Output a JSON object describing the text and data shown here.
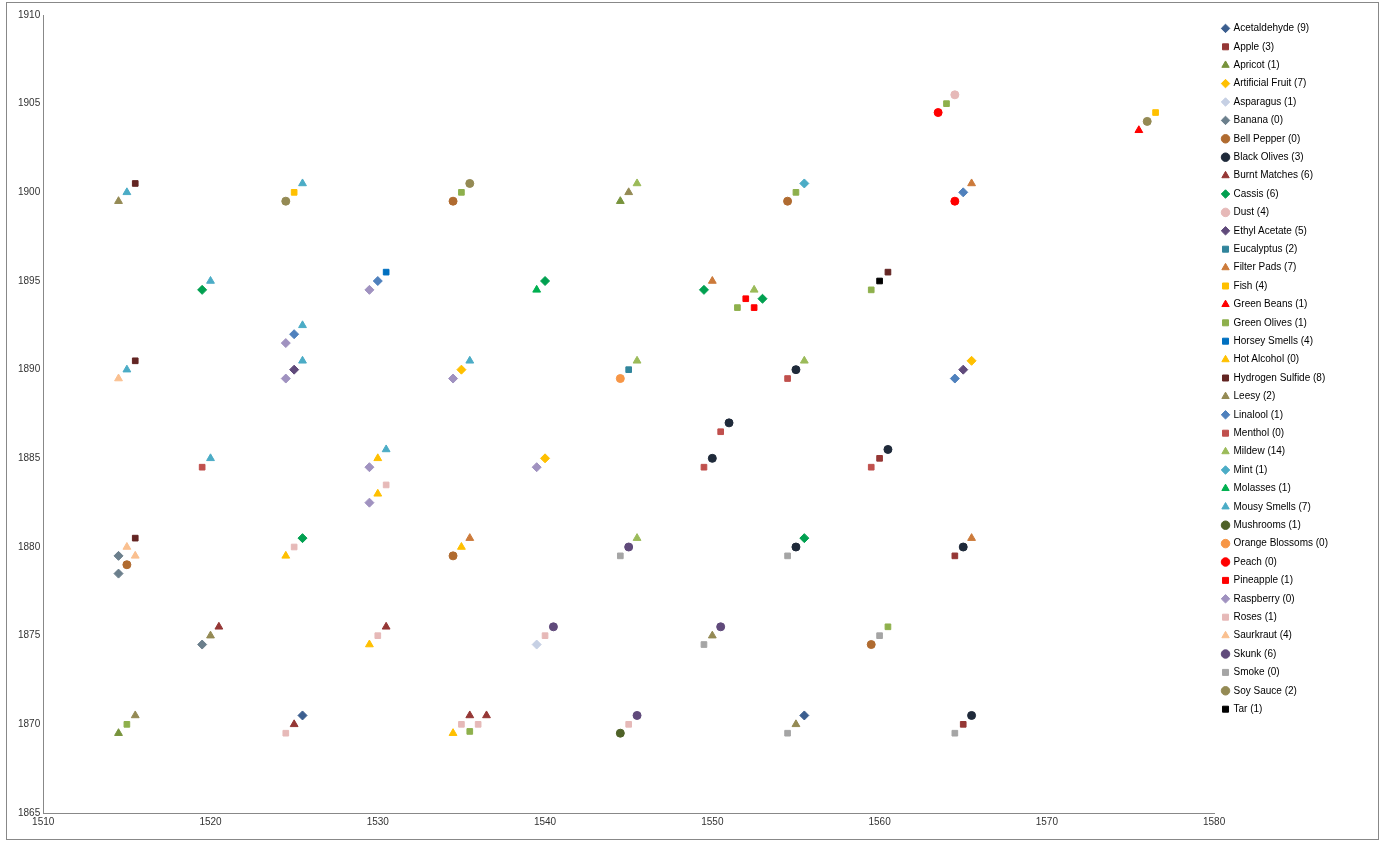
{
  "chart_data": {
    "type": "scatter",
    "xlim": [
      1510,
      1580
    ],
    "xticks": [
      1510,
      1520,
      1530,
      1540,
      1550,
      1560,
      1570,
      1580
    ],
    "ylim": [
      1865,
      1910
    ],
    "yticks": [
      1865,
      1870,
      1875,
      1880,
      1885,
      1890,
      1895,
      1900,
      1905,
      1910
    ],
    "grid": false,
    "legend": "right",
    "series": [
      {
        "name": "Acetaldehyde (9)",
        "color": "#3b5e8f",
        "marker": "diamond",
        "x": [
          1525.5,
          1555.5
        ],
        "values": [
          1870.5,
          1870.5
        ]
      },
      {
        "name": "Apple (3)",
        "color": "#953735",
        "marker": "square",
        "x": [
          1560,
          1564.5,
          1565
        ],
        "values": [
          1885,
          1879.5,
          1870
        ]
      },
      {
        "name": "Apricot (1)",
        "color": "#77933c",
        "marker": "triangle",
        "x": [
          1514.5,
          1544.5
        ],
        "values": [
          1869.5,
          1899.5
        ]
      },
      {
        "name": "Artificial Fruit (7)",
        "color": "#ffc000",
        "marker": "diamond",
        "x": [
          1535,
          1540,
          1565.5
        ],
        "values": [
          1890,
          1885,
          1890.5
        ]
      },
      {
        "name": "Asparagus (1)",
        "color": "#c6d0e4",
        "marker": "diamond",
        "x": [
          1539.5
        ],
        "values": [
          1874.5
        ]
      },
      {
        "name": "Banana (0)",
        "color": "#6b7f8c",
        "marker": "diamond",
        "x": [
          1514.5,
          1514.5,
          1519.5
        ],
        "values": [
          1879.5,
          1878.5,
          1874.5
        ]
      },
      {
        "name": "Bell Pepper (0)",
        "color": "#b06b30",
        "marker": "circle",
        "x": [
          1515,
          1534.5,
          1554.5,
          1534.5,
          1559.5
        ],
        "values": [
          1879,
          1899.5,
          1899.5,
          1879.5,
          1874.5
        ]
      },
      {
        "name": "Black Olives (3)",
        "color": "#1f2a3a",
        "marker": "circle",
        "x": [
          1555,
          1551,
          1550,
          1555,
          1560.5,
          1565,
          1565.5
        ],
        "values": [
          1890,
          1887,
          1885,
          1880,
          1885.5,
          1880,
          1870.5
        ]
      },
      {
        "name": "Burnt Matches (6)",
        "color": "#953735",
        "marker": "triangle",
        "x": [
          1520.5,
          1530.5,
          1525,
          1535.5,
          1536.5
        ],
        "values": [
          1875.5,
          1875.5,
          1870,
          1870.5,
          1870.5
        ]
      },
      {
        "name": "Cassis (6)",
        "color": "#00a050",
        "marker": "diamond",
        "x": [
          1519.5,
          1525.5,
          1540,
          1549.5,
          1553,
          1555.5
        ],
        "values": [
          1894.5,
          1880.5,
          1895,
          1894.5,
          1894,
          1880.5
        ]
      },
      {
        "name": "Dust (4)",
        "color": "#e6b9b8",
        "marker": "circle",
        "x": [
          1564.5
        ],
        "values": [
          1905.5
        ]
      },
      {
        "name": "Ethyl Acetate (5)",
        "color": "#604a7b",
        "marker": "diamond",
        "x": [
          1525,
          1565
        ],
        "values": [
          1890,
          1890
        ]
      },
      {
        "name": "Eucalyptus (2)",
        "color": "#31859c",
        "marker": "square",
        "x": [
          1545
        ],
        "values": [
          1890
        ]
      },
      {
        "name": "Filter Pads (7)",
        "color": "#cc7a3a",
        "marker": "triangle",
        "x": [
          1550,
          1535.5,
          1565.5,
          1565.5
        ],
        "values": [
          1895,
          1880.5,
          1900.5,
          1880.5
        ]
      },
      {
        "name": "Fish (4)",
        "color": "#ffc000",
        "marker": "square",
        "x": [
          1525,
          1576.5
        ],
        "values": [
          1900,
          1904.5
        ]
      },
      {
        "name": "Green Beans (1)",
        "color": "#ff0000",
        "marker": "triangle",
        "x": [
          1575.5
        ],
        "values": [
          1903.5
        ]
      },
      {
        "name": "Green Olives (1)",
        "color": "#8eb04c",
        "marker": "square",
        "x": [
          1515,
          1535,
          1555,
          1551.5,
          1535.5,
          1564,
          1559.5,
          1560.5
        ],
        "values": [
          1870,
          1900,
          1900,
          1893.5,
          1869.6,
          1905,
          1894.5,
          1875.5
        ]
      },
      {
        "name": "Horsey Smells (4)",
        "color": "#0070c0",
        "marker": "square",
        "x": [
          1530.5
        ],
        "values": [
          1895.5
        ]
      },
      {
        "name": "Hot Alcohol (0)",
        "color": "#ffc000",
        "marker": "triangle",
        "x": [
          1530,
          1530,
          1524.5,
          1529.5,
          1535,
          1534.5
        ],
        "values": [
          1885,
          1883,
          1879.5,
          1874.5,
          1880,
          1869.5
        ]
      },
      {
        "name": "Hydrogen Sulfide (8)",
        "color": "#632523",
        "marker": "square",
        "x": [
          1515.5,
          1515.5,
          1515.5,
          1560.5
        ],
        "values": [
          1900.5,
          1890.5,
          1880.5,
          1895.5
        ]
      },
      {
        "name": "Leesy (2)",
        "color": "#948a54",
        "marker": "triangle",
        "x": [
          1514.5,
          1520,
          1515.5,
          1545,
          1550,
          1555
        ],
        "values": [
          1899.5,
          1875,
          1870.5,
          1900,
          1875,
          1870
        ]
      },
      {
        "name": "Linalool (1)",
        "color": "#4f81bd",
        "marker": "diamond",
        "x": [
          1530,
          1525,
          1565,
          1564.5
        ],
        "values": [
          1895,
          1892,
          1900,
          1889.5
        ]
      },
      {
        "name": "Menthol (0)",
        "color": "#c0504d",
        "marker": "square",
        "x": [
          1519.5,
          1554.5,
          1550.5,
          1549.5,
          1559.5
        ],
        "values": [
          1884.5,
          1889.5,
          1886.5,
          1884.5,
          1884.5
        ]
      },
      {
        "name": "Mildew (14)",
        "color": "#9bbb59",
        "marker": "triangle",
        "x": [
          1545.5,
          1552.5,
          1545.5,
          1555.5,
          1545.5
        ],
        "values": [
          1900.5,
          1894.5,
          1890.5,
          1890.5,
          1880.5
        ]
      },
      {
        "name": "Mint (1)",
        "color": "#4bacc6",
        "marker": "diamond",
        "x": [
          1555.5
        ],
        "values": [
          1900.5
        ]
      },
      {
        "name": "Molasses (1)",
        "color": "#00b050",
        "marker": "triangle",
        "x": [
          1539.5
        ],
        "values": [
          1894.5
        ]
      },
      {
        "name": "Mousy Smells (7)",
        "color": "#4bacc6",
        "marker": "triangle",
        "x": [
          1515,
          1525.5,
          1520,
          1525.5,
          1525.5,
          1515,
          1520,
          1530.5,
          1535.5
        ],
        "values": [
          1900,
          1900.5,
          1895,
          1892.5,
          1890.5,
          1890,
          1885,
          1885.5,
          1890.5
        ]
      },
      {
        "name": "Mushrooms (1)",
        "color": "#4f6228",
        "marker": "circle",
        "x": [
          1544.5
        ],
        "values": [
          1869.5
        ]
      },
      {
        "name": "Orange Blossoms (0)",
        "color": "#f79646",
        "marker": "circle",
        "x": [
          1544.5
        ],
        "values": [
          1889.5
        ]
      },
      {
        "name": "Peach (0)",
        "color": "#ff0000",
        "marker": "circle",
        "x": [
          1563.5,
          1564.5
        ],
        "values": [
          1904.5,
          1899.5
        ]
      },
      {
        "name": "Pineapple (1)",
        "color": "#ff0000",
        "marker": "square",
        "x": [
          1552,
          1552.5
        ],
        "values": [
          1894,
          1893.5
        ]
      },
      {
        "name": "Raspberry (0)",
        "color": "#a092c0",
        "marker": "diamond",
        "x": [
          1529.5,
          1524.5,
          1524.5,
          1529.5,
          1529.5,
          1534.5,
          1539.5
        ],
        "values": [
          1894.5,
          1891.5,
          1889.5,
          1884.5,
          1882.5,
          1889.5,
          1884.5
        ]
      },
      {
        "name": "Roses (1)",
        "color": "#e6b9b8",
        "marker": "square",
        "x": [
          1530.5,
          1525,
          1530,
          1524.5,
          1540,
          1535,
          1536,
          1545
        ],
        "values": [
          1883.5,
          1880,
          1875,
          1869.5,
          1875,
          1870,
          1870,
          1870
        ]
      },
      {
        "name": "Saurkraut (4)",
        "color": "#fac090",
        "marker": "triangle",
        "x": [
          1514.5,
          1515,
          1515.5
        ],
        "values": [
          1889.5,
          1880,
          1879.5
        ]
      },
      {
        "name": "Skunk (6)",
        "color": "#604a7b",
        "marker": "circle",
        "x": [
          1545,
          1540.5,
          1550.5,
          1545.5
        ],
        "values": [
          1880,
          1875.5,
          1875.5,
          1870.5
        ]
      },
      {
        "name": "Smoke (0)",
        "color": "#a5a5a5",
        "marker": "square",
        "x": [
          1544.5,
          1554.5,
          1549.5,
          1554.5,
          1560,
          1564.5
        ],
        "values": [
          1879.5,
          1879.5,
          1874.5,
          1869.5,
          1875,
          1869.5
        ]
      },
      {
        "name": "Soy Sauce (2)",
        "color": "#948a54",
        "marker": "circle",
        "x": [
          1524.5,
          1535.5,
          1576
        ],
        "values": [
          1899.5,
          1900.5,
          1904
        ]
      },
      {
        "name": "Tar (1)",
        "color": "#000000",
        "marker": "square",
        "x": [
          1560
        ],
        "values": [
          1895
        ]
      }
    ]
  }
}
